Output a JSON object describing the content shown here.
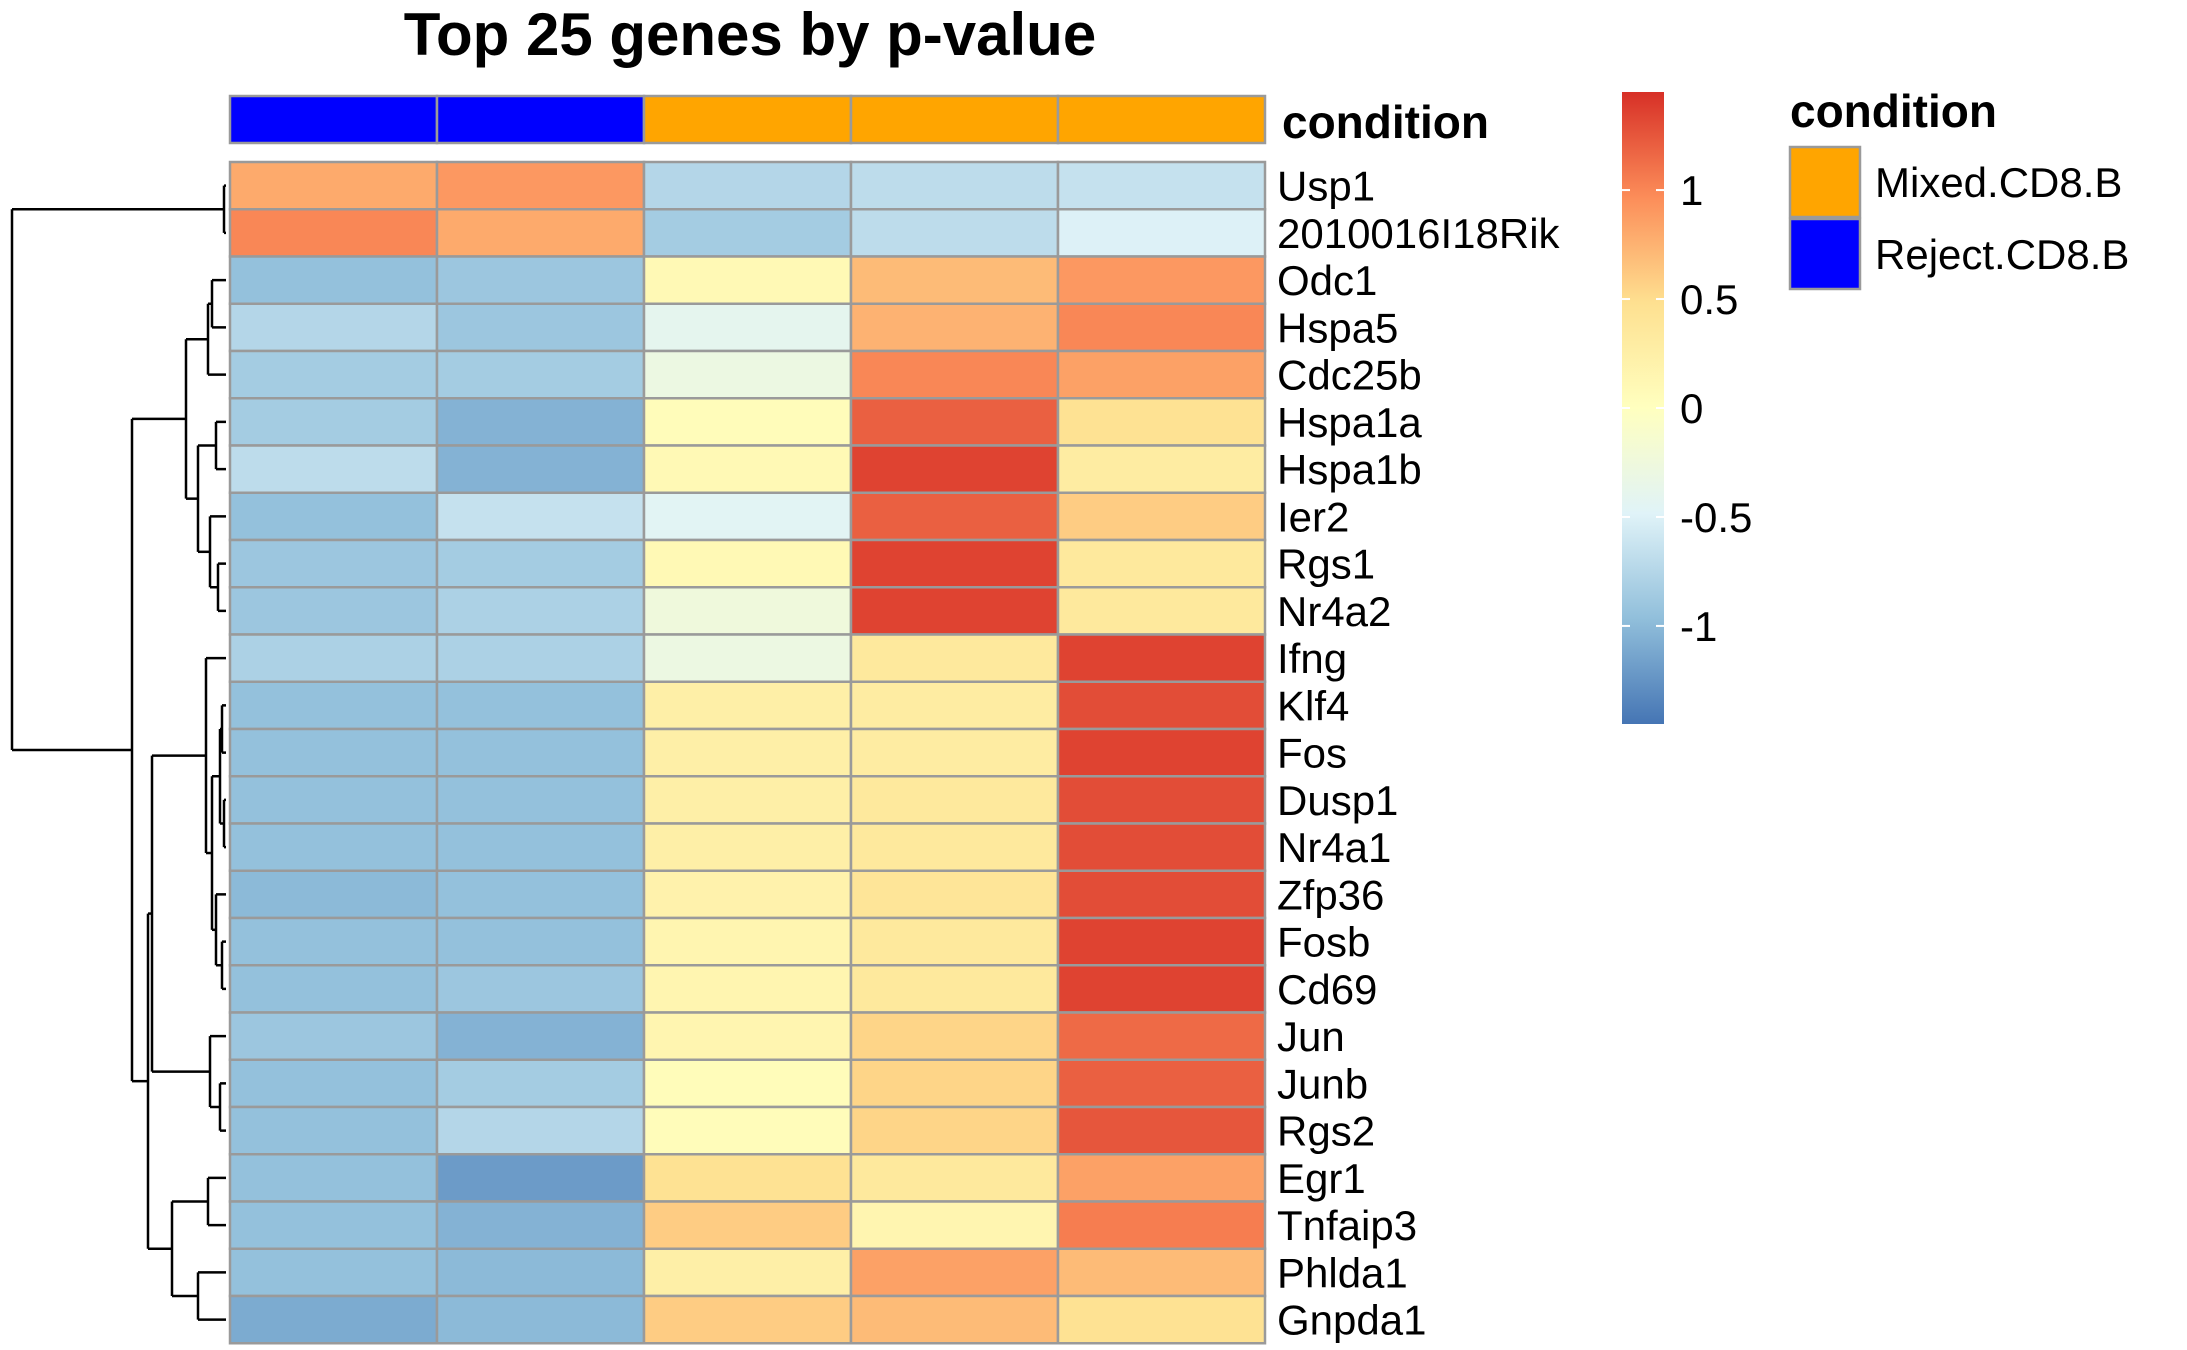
{
  "chart_data": {
    "type": "heatmap",
    "title": "Top 25 genes by p-value",
    "annotation": {
      "name": "condition",
      "values": [
        "Reject.CD8.B",
        "Reject.CD8.B",
        "Mixed.CD8.B",
        "Mixed.CD8.B",
        "Mixed.CD8.B"
      ],
      "legend_title": "condition",
      "legend_items": [
        {
          "label": "Mixed.CD8.B",
          "color": "#FFA500"
        },
        {
          "label": "Reject.CD8.B",
          "color": "#0000FF"
        }
      ]
    },
    "rows": [
      "Usp1",
      "2010016I18Rik",
      "Odc1",
      "Hspa5",
      "Cdc25b",
      "Hspa1a",
      "Hspa1b",
      "Ier2",
      "Rgs1",
      "Nr4a2",
      "Ifng",
      "Klf4",
      "Fos",
      "Dusp1",
      "Nr4a1",
      "Zfp36",
      "Fosb",
      "Cd69",
      "Jun",
      "Junb",
      "Rgs2",
      "Egr1",
      "Tnfaip3",
      "Phlda1",
      "Gnpda1"
    ],
    "values": [
      [
        0.8,
        0.9,
        -0.75,
        -0.7,
        -0.65
      ],
      [
        1.0,
        0.8,
        -0.85,
        -0.7,
        -0.5
      ],
      [
        -0.95,
        -0.9,
        0.1,
        0.7,
        0.9
      ],
      [
        -0.75,
        -0.9,
        -0.4,
        0.75,
        1.0
      ],
      [
        -0.85,
        -0.85,
        -0.3,
        1.0,
        0.85
      ],
      [
        -0.85,
        -1.05,
        0.05,
        1.2,
        0.45
      ],
      [
        -0.7,
        -1.05,
        0.1,
        1.35,
        0.3
      ],
      [
        -0.95,
        -0.65,
        -0.45,
        1.2,
        0.6
      ],
      [
        -0.9,
        -0.85,
        0.1,
        1.35,
        0.35
      ],
      [
        -0.9,
        -0.8,
        -0.25,
        1.35,
        0.35
      ],
      [
        -0.8,
        -0.8,
        -0.3,
        0.35,
        1.35
      ],
      [
        -0.95,
        -0.95,
        0.25,
        0.3,
        1.3
      ],
      [
        -0.95,
        -0.95,
        0.25,
        0.3,
        1.35
      ],
      [
        -0.95,
        -0.95,
        0.25,
        0.35,
        1.3
      ],
      [
        -0.95,
        -0.95,
        0.25,
        0.35,
        1.3
      ],
      [
        -1.0,
        -0.95,
        0.2,
        0.4,
        1.3
      ],
      [
        -0.95,
        -0.95,
        0.15,
        0.35,
        1.35
      ],
      [
        -0.95,
        -0.9,
        0.15,
        0.35,
        1.35
      ],
      [
        -0.9,
        -1.05,
        0.15,
        0.55,
        1.15
      ],
      [
        -0.95,
        -0.85,
        0.05,
        0.55,
        1.2
      ],
      [
        -0.95,
        -0.75,
        0.05,
        0.55,
        1.25
      ],
      [
        -0.95,
        -1.2,
        0.45,
        0.35,
        0.85
      ],
      [
        -0.95,
        -1.05,
        0.6,
        0.15,
        1.05
      ],
      [
        -0.95,
        -1.0,
        0.25,
        0.85,
        0.7
      ],
      [
        -1.1,
        -1.0,
        0.6,
        0.7,
        0.45
      ]
    ],
    "color_scale": {
      "min": -1.45,
      "max": 1.45,
      "colors": [
        "#4575B4",
        "#91BFDB",
        "#E0F3F8",
        "#FFFFBF",
        "#FEE090",
        "#FC8D59",
        "#D73027"
      ],
      "ticks": [
        1,
        0.5,
        0,
        -0.5,
        -1
      ],
      "tick_labels": [
        "1",
        "0.5",
        "0",
        "-0.5",
        "-1"
      ]
    },
    "row_dendrogram": true
  }
}
